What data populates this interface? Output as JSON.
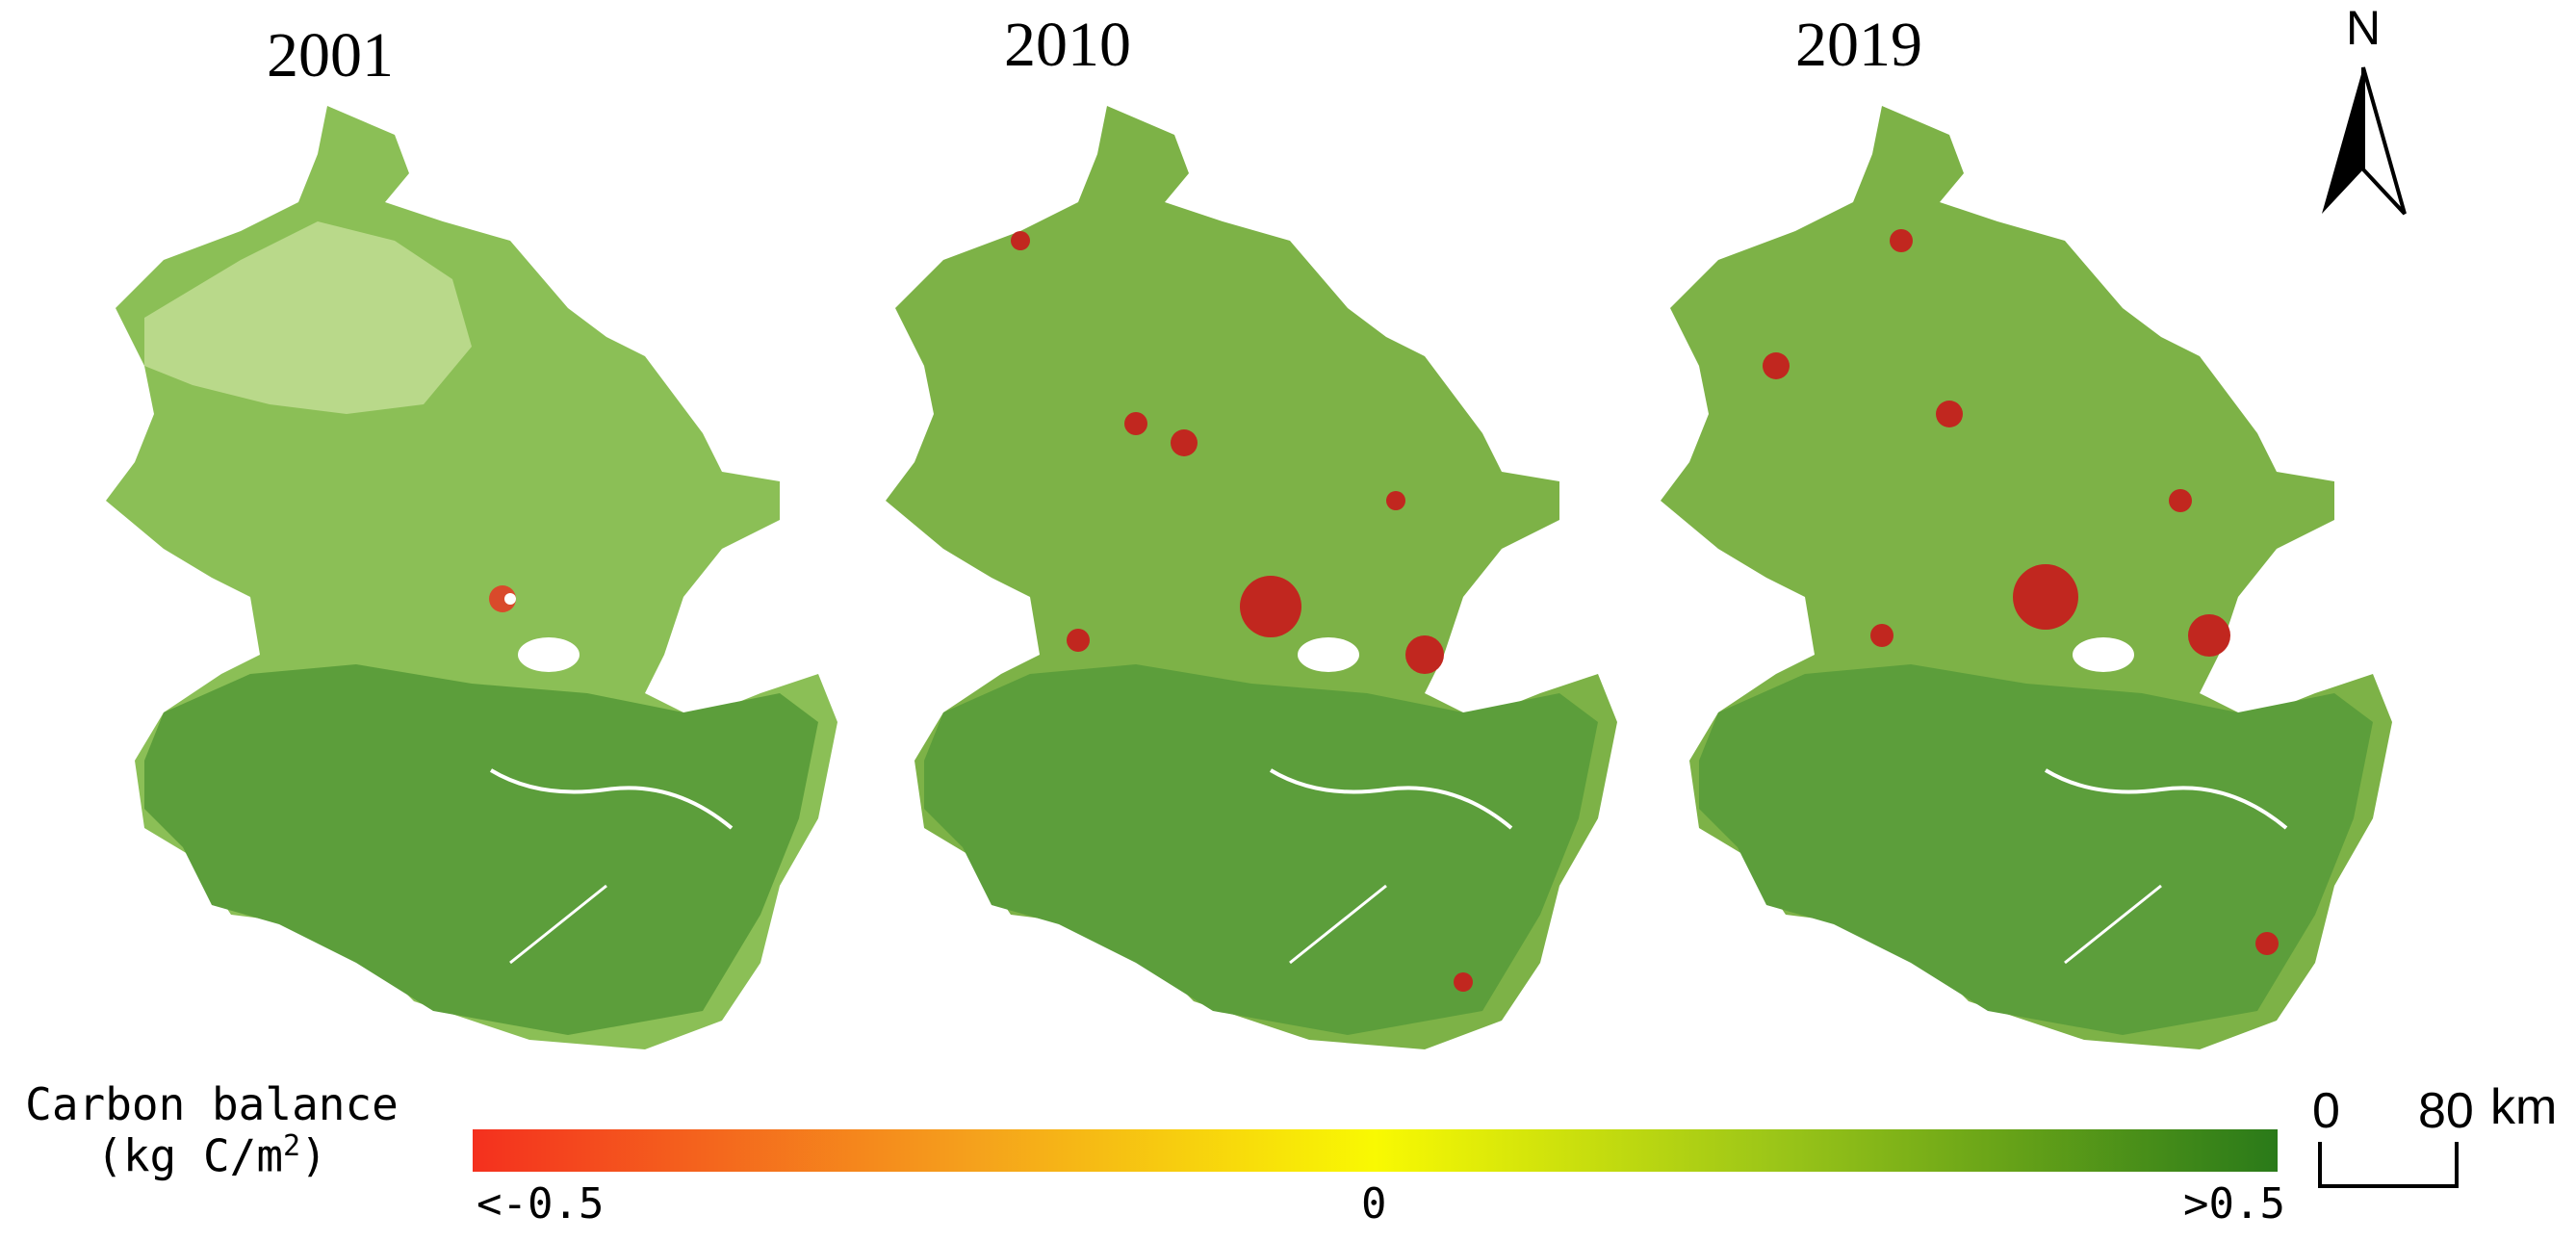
{
  "maps": [
    {
      "year": "2001"
    },
    {
      "year": "2010"
    },
    {
      "year": "2019"
    }
  ],
  "north_arrow": {
    "label": "N",
    "icon": "north-arrow-icon"
  },
  "legend": {
    "title": "Carbon balance",
    "unit_prefix": "(kg C/m",
    "unit_exp": "2",
    "unit_suffix": ")",
    "min_label": "<-0.5",
    "mid_label": "0",
    "max_label": ">0.5",
    "colors": [
      "#f4301e",
      "#f5a21c",
      "#f9f902",
      "#9cc618",
      "#2a7a19"
    ]
  },
  "scalebar": {
    "zero": "0",
    "max": "80",
    "unit": "km"
  }
}
